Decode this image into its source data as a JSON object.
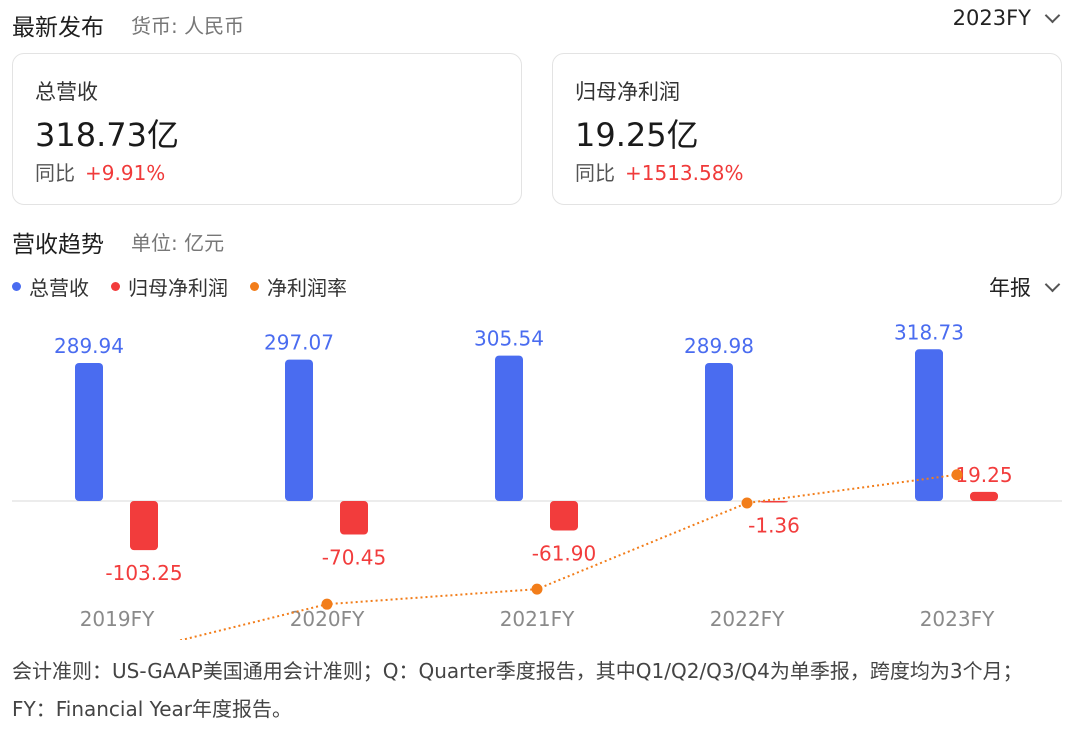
{
  "header": {
    "title": "最新发布",
    "currency": "货币: 人民币",
    "period": "2023FY"
  },
  "cards": [
    {
      "label": "总营收",
      "value": "318.73亿",
      "yoy_label": "同比",
      "yoy_value": "+9.91%"
    },
    {
      "label": "归母净利润",
      "value": "19.25亿",
      "yoy_label": "同比",
      "yoy_value": "+1513.58%"
    }
  ],
  "trend": {
    "title": "营收趋势",
    "unit": "单位: 亿元",
    "report_type": "年报"
  },
  "legend": [
    {
      "name": "总营收",
      "color": "#4a6cf0"
    },
    {
      "name": "归母净利润",
      "color": "#f23c3c"
    },
    {
      "name": "净利润率",
      "color": "#f27d1a"
    }
  ],
  "chart_data": {
    "type": "bar",
    "categories": [
      "2019FY",
      "2020FY",
      "2021FY",
      "2022FY",
      "2023FY"
    ],
    "series": [
      {
        "name": "总营收",
        "values": [
          289.94,
          297.07,
          305.54,
          289.98,
          318.73
        ],
        "color": "#4a6cf0"
      },
      {
        "name": "归母净利润",
        "values": [
          -103.25,
          -70.45,
          -61.9,
          -1.36,
          19.25
        ],
        "color": "#f23c3c"
      },
      {
        "name": "净利润率",
        "type": "line",
        "values": [
          -35.61,
          -23.72,
          -20.26,
          -0.47,
          6.04
        ],
        "color": "#f27d1a"
      }
    ],
    "value_labels": {
      "总营收": [
        "289.94",
        "297.07",
        "305.54",
        "289.98",
        "318.73"
      ],
      "归母净利润": [
        "-103.25",
        "-70.45",
        "-61.90",
        "-1.36",
        "19.25"
      ]
    }
  },
  "footnote": "会计准则：US-GAAP美国通用会计准则；Q：Quarter季度报告，其中Q1/Q2/Q3/Q4为单季报，跨度均为3个月；FY：Financial Year年度报告。"
}
